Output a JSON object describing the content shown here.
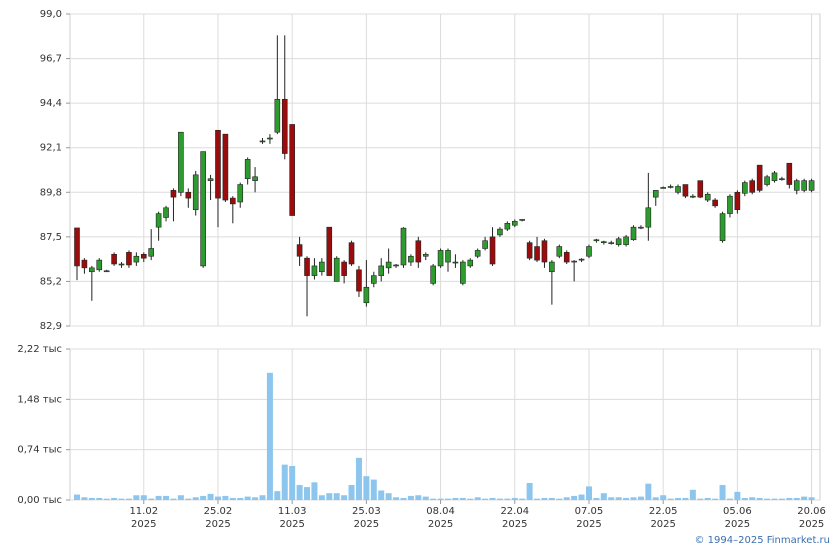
{
  "chart_data": [
    {
      "type": "candlestick",
      "up_color": "#2e9b2e",
      "down_color": "#9b0d0d",
      "wick_color": "#222222",
      "ylim": [
        82.9,
        99.0
      ],
      "yticks": [
        {
          "value": 82.9,
          "label": "82,9"
        },
        {
          "value": 85.2,
          "label": "85,2"
        },
        {
          "value": 87.5,
          "label": "87,5"
        },
        {
          "value": 89.8,
          "label": "89,8"
        },
        {
          "value": 92.1,
          "label": "92,1"
        },
        {
          "value": 94.4,
          "label": "94,4"
        },
        {
          "value": 96.7,
          "label": "96,7"
        },
        {
          "value": 99.0,
          "label": "99,0"
        }
      ],
      "grid": true,
      "open": [
        87.96,
        86.3,
        85.7,
        85.8,
        85.7,
        86.6,
        86.05,
        86.7,
        86.2,
        86.6,
        86.5,
        88.0,
        88.5,
        89.9,
        89.8,
        89.8,
        88.9,
        86.0,
        90.4,
        93.0,
        92.8,
        89.5,
        89.3,
        90.5,
        90.4,
        92.4,
        92.55,
        92.9,
        94.6,
        93.3,
        87.1,
        86.4,
        85.5,
        85.7,
        88.0,
        85.2,
        86.2,
        87.2,
        85.8,
        84.1,
        85.1,
        85.5,
        85.9,
        86.0,
        86.05,
        86.2,
        87.3,
        86.5,
        85.1,
        86.0,
        86.2,
        86.15,
        85.1,
        86.0,
        86.5,
        86.9,
        87.5,
        87.6,
        87.9,
        88.1,
        88.35,
        87.2,
        87.0,
        87.3,
        85.7,
        86.5,
        86.7,
        86.2,
        86.3,
        86.5,
        87.3,
        87.2,
        87.2,
        87.1,
        87.1,
        87.35,
        87.95,
        88.0,
        89.55,
        90.0,
        90.05,
        89.8,
        90.2,
        89.6,
        90.4,
        89.4,
        89.4,
        87.3,
        88.7,
        89.8,
        89.75,
        90.4,
        91.2,
        90.2,
        90.4,
        90.5,
        91.3,
        89.9,
        89.9,
        89.9
      ],
      "high": [
        87.96,
        86.4,
        86.0,
        86.4,
        85.8,
        86.7,
        86.2,
        86.8,
        86.7,
        86.7,
        87.9,
        88.8,
        89.1,
        90.0,
        92.9,
        90.0,
        90.9,
        91.9,
        90.7,
        93.0,
        92.8,
        89.6,
        90.3,
        91.6,
        91.1,
        92.6,
        92.8,
        97.9,
        97.9,
        93.3,
        87.5,
        86.5,
        86.4,
        86.4,
        88.0,
        86.5,
        86.3,
        87.3,
        86.0,
        86.3,
        85.7,
        86.4,
        86.9,
        86.1,
        88.0,
        86.6,
        87.5,
        86.7,
        86.1,
        86.9,
        86.9,
        86.6,
        86.3,
        86.4,
        86.9,
        87.5,
        88.0,
        88.0,
        88.3,
        88.4,
        88.4,
        87.3,
        87.5,
        87.4,
        86.3,
        87.1,
        86.8,
        86.3,
        86.4,
        87.1,
        87.4,
        87.3,
        87.3,
        87.5,
        87.6,
        88.1,
        88.1,
        90.8,
        89.9,
        90.1,
        90.2,
        90.2,
        90.2,
        89.7,
        90.4,
        89.8,
        89.5,
        88.8,
        89.7,
        89.9,
        90.4,
        90.5,
        91.2,
        90.7,
        90.9,
        90.6,
        91.3,
        90.5,
        90.5,
        90.5
      ],
      "low": [
        85.27,
        85.6,
        84.2,
        85.7,
        85.7,
        86.0,
        85.9,
        85.9,
        86.0,
        86.2,
        86.3,
        87.3,
        88.3,
        88.3,
        89.6,
        89.0,
        88.6,
        85.9,
        89.4,
        88.0,
        89.3,
        88.2,
        89.0,
        90.2,
        89.8,
        92.3,
        92.3,
        92.8,
        91.5,
        88.6,
        86.0,
        83.4,
        85.3,
        85.5,
        85.5,
        85.2,
        85.1,
        86.0,
        84.4,
        83.9,
        84.9,
        85.2,
        85.6,
        85.9,
        85.9,
        86.0,
        85.9,
        86.3,
        85.0,
        85.9,
        85.7,
        85.9,
        85.0,
        85.9,
        86.4,
        86.8,
        86.0,
        87.5,
        87.8,
        88.0,
        88.3,
        86.3,
        86.2,
        85.9,
        84.0,
        86.4,
        86.1,
        85.2,
        86.2,
        86.4,
        87.2,
        87.1,
        87.1,
        87.0,
        87.0,
        87.3,
        87.9,
        87.3,
        89.1,
        90.0,
        90.0,
        89.7,
        89.5,
        89.5,
        89.5,
        89.3,
        89.0,
        87.2,
        88.5,
        88.7,
        89.6,
        89.7,
        89.8,
        90.1,
        90.3,
        90.4,
        90.0,
        89.7,
        89.8,
        89.8
      ],
      "close": [
        86.0,
        85.9,
        85.9,
        86.3,
        85.75,
        86.1,
        86.1,
        86.05,
        86.5,
        86.4,
        86.9,
        88.7,
        89.0,
        89.55,
        92.9,
        89.5,
        90.7,
        91.9,
        90.5,
        89.5,
        89.4,
        89.2,
        90.2,
        91.5,
        90.6,
        92.45,
        92.6,
        94.6,
        91.8,
        88.6,
        86.5,
        85.5,
        86.0,
        86.2,
        85.5,
        86.4,
        85.5,
        86.1,
        84.7,
        84.9,
        85.5,
        86.0,
        86.2,
        86.05,
        87.95,
        86.5,
        86.2,
        86.6,
        86.0,
        86.8,
        86.8,
        86.2,
        86.2,
        86.3,
        86.8,
        87.3,
        86.1,
        87.9,
        88.2,
        88.3,
        88.4,
        86.4,
        86.3,
        86.2,
        86.2,
        87.0,
        86.2,
        86.25,
        86.35,
        87.0,
        87.35,
        87.25,
        87.2,
        87.4,
        87.5,
        88.0,
        88.0,
        89.0,
        89.9,
        90.05,
        90.1,
        90.1,
        89.6,
        89.6,
        89.55,
        89.7,
        89.1,
        88.7,
        89.6,
        88.9,
        90.3,
        89.8,
        89.9,
        90.6,
        90.8,
        90.5,
        90.2,
        90.4,
        90.4,
        90.4
      ]
    },
    {
      "type": "bar",
      "color": "#8cc6ee",
      "ylim": [
        0,
        2.22
      ],
      "yticks": [
        {
          "value": 0,
          "label": "0,00 тыс"
        },
        {
          "value": 0.74,
          "label": "0,74 тыс"
        },
        {
          "value": 1.48,
          "label": "1,48 тыс"
        },
        {
          "value": 2.22,
          "label": "2,22 тыс"
        }
      ],
      "grid": true,
      "categories": [
        null,
        null,
        null,
        null,
        null,
        null,
        null,
        null,
        null,
        "11.02\n2025",
        null,
        null,
        null,
        null,
        null,
        null,
        null,
        null,
        null,
        "25.02\n2025",
        null,
        null,
        null,
        null,
        null,
        null,
        null,
        null,
        null,
        "11.03\n2025",
        null,
        null,
        null,
        null,
        null,
        null,
        null,
        null,
        null,
        "25.03\n2025",
        null,
        null,
        null,
        null,
        null,
        null,
        null,
        null,
        null,
        "08.04\n2025",
        null,
        null,
        null,
        null,
        null,
        null,
        null,
        null,
        null,
        "22.04\n2025",
        null,
        null,
        null,
        null,
        null,
        null,
        null,
        null,
        null,
        "07.05\n2025",
        null,
        null,
        null,
        null,
        null,
        null,
        null,
        null,
        null,
        "22.05\n2025",
        null,
        null,
        null,
        null,
        null,
        null,
        null,
        null,
        null,
        "05.06\n2025",
        null,
        null,
        null,
        null,
        null,
        null,
        null,
        null,
        null,
        "20.06\n2025"
      ],
      "values": [
        0.08,
        0.04,
        0.03,
        0.03,
        0.02,
        0.03,
        0.02,
        0.02,
        0.07,
        0.07,
        0.02,
        0.06,
        0.06,
        0.02,
        0.07,
        0.02,
        0.04,
        0.06,
        0.09,
        0.05,
        0.06,
        0.03,
        0.03,
        0.05,
        0.04,
        0.07,
        1.87,
        0.13,
        0.52,
        0.5,
        0.22,
        0.19,
        0.26,
        0.07,
        0.1,
        0.1,
        0.07,
        0.22,
        0.62,
        0.35,
        0.3,
        0.14,
        0.1,
        0.04,
        0.03,
        0.06,
        0.07,
        0.05,
        0.02,
        0.02,
        0.02,
        0.03,
        0.03,
        0.02,
        0.04,
        0.02,
        0.03,
        0.02,
        0.02,
        0.03,
        0.02,
        0.25,
        0.02,
        0.03,
        0.03,
        0.02,
        0.04,
        0.06,
        0.08,
        0.2,
        0.03,
        0.1,
        0.04,
        0.04,
        0.03,
        0.04,
        0.05,
        0.24,
        0.04,
        0.07,
        0.02,
        0.03,
        0.03,
        0.15,
        0.02,
        0.03,
        0.02,
        0.22,
        0.02,
        0.12,
        0.03,
        0.04,
        0.03,
        0.02,
        0.02,
        0.02,
        0.03,
        0.03,
        0.05,
        0.04
      ]
    }
  ],
  "footer": "© 1994–2025 Finmarket.ru"
}
